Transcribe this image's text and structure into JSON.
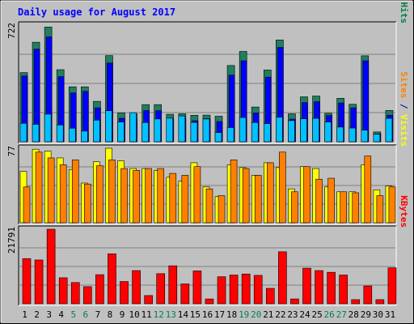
{
  "chart_data": {
    "type": "bar",
    "title": "Daily usage for August 2017",
    "categories": [
      "1",
      "2",
      "3",
      "4",
      "5",
      "6",
      "7",
      "8",
      "9",
      "10",
      "11",
      "12",
      "13",
      "14",
      "15",
      "16",
      "17",
      "18",
      "19",
      "20",
      "21",
      "22",
      "23",
      "24",
      "25",
      "26",
      "27",
      "28",
      "29",
      "30",
      "31"
    ],
    "weekend_days": [
      "5",
      "6",
      "12",
      "13",
      "19",
      "20",
      "26",
      "27"
    ],
    "panels": [
      {
        "id": "hits",
        "max_label": "722",
        "ylim": [
          0,
          722
        ],
        "right_label": [
          {
            "text": "Pages",
            "color": "#00c0ff"
          },
          {
            "text": " / ",
            "color": "#000080"
          },
          {
            "text": "Files",
            "color": "#0000ff"
          },
          {
            "text": " / ",
            "color": "#000080"
          },
          {
            "text": "Hits",
            "color": "#008040"
          }
        ],
        "series": [
          {
            "name": "Hits",
            "color": "#1f7f5f",
            "values": [
              428,
              616,
              710,
              446,
              340,
              340,
              250,
              533,
              178,
              173,
              230,
              230,
              170,
              173,
              164,
              165,
              158,
              472,
              559,
              215,
              444,
              630,
              173,
              278,
              283,
              176,
              269,
              232,
              532,
              61,
              194
            ]
          },
          {
            "name": "Files",
            "color": "#0000ff",
            "values": [
              407,
              573,
              649,
              403,
              302,
              312,
              210,
              487,
              145,
              140,
              193,
              192,
              138,
              142,
              130,
              143,
              125,
              412,
              501,
              178,
              400,
              584,
              140,
              242,
              248,
              162,
              240,
              210,
              501,
              48,
              164
            ]
          },
          {
            "name": "Pages",
            "color": "#00c0ff",
            "values": [
              114,
              108,
              171,
              104,
              84,
              66,
              134,
              192,
              122,
              180,
              119,
              141,
              146,
              160,
              120,
              141,
              57,
              88,
              150,
              119,
              112,
              152,
              131,
              142,
              145,
              122,
              91,
              85,
              72,
              47,
              145
            ]
          }
        ]
      },
      {
        "id": "visits",
        "max_label": "77",
        "ylim": [
          0,
          77
        ],
        "right_label": [
          {
            "text": "Sites",
            "color": "#ff8000"
          },
          {
            "text": " / ",
            "color": "#000080"
          },
          {
            "text": "Visits",
            "color": "#ffff00"
          }
        ],
        "series": [
          {
            "name": "Visits",
            "color": "#ffff00",
            "values": [
              53,
              76,
              74,
              67,
              55,
              41,
              63,
              77,
              64,
              56,
              56,
              54,
              47,
              43,
              62,
              37,
              27,
              60,
              57,
              49,
              62,
              57,
              35,
              58,
              56,
              37,
              32,
              32,
              60,
              34,
              38
            ]
          },
          {
            "name": "Sites",
            "color": "#ff8000",
            "values": [
              37,
              73,
              67,
              60,
              65,
              40,
              59,
              65,
              56,
              54,
              56,
              56,
              51,
              49,
              58,
              35,
              28,
              65,
              56,
              49,
              62,
              73,
              32,
              58,
              45,
              46,
              32,
              31,
              69,
              28,
              37
            ]
          }
        ]
      },
      {
        "id": "kbytes",
        "max_label": "21791",
        "ylim": [
          0,
          21791
        ],
        "right_label": [
          {
            "text": "KBytes",
            "color": "#ff0000"
          }
        ],
        "series": [
          {
            "name": "KBytes",
            "color": "#ff0000",
            "values": [
              13200,
              12800,
              21791,
              7600,
              6200,
              5000,
              8500,
              14600,
              6500,
              9700,
              2400,
              8800,
              11100,
              5800,
              9600,
              1400,
              7900,
              8400,
              8700,
              8300,
              4500,
              15200,
              1400,
              10400,
              9700,
              9200,
              8400,
              1200,
              5200,
              1200,
              10500
            ]
          }
        ]
      }
    ],
    "grid": true
  }
}
